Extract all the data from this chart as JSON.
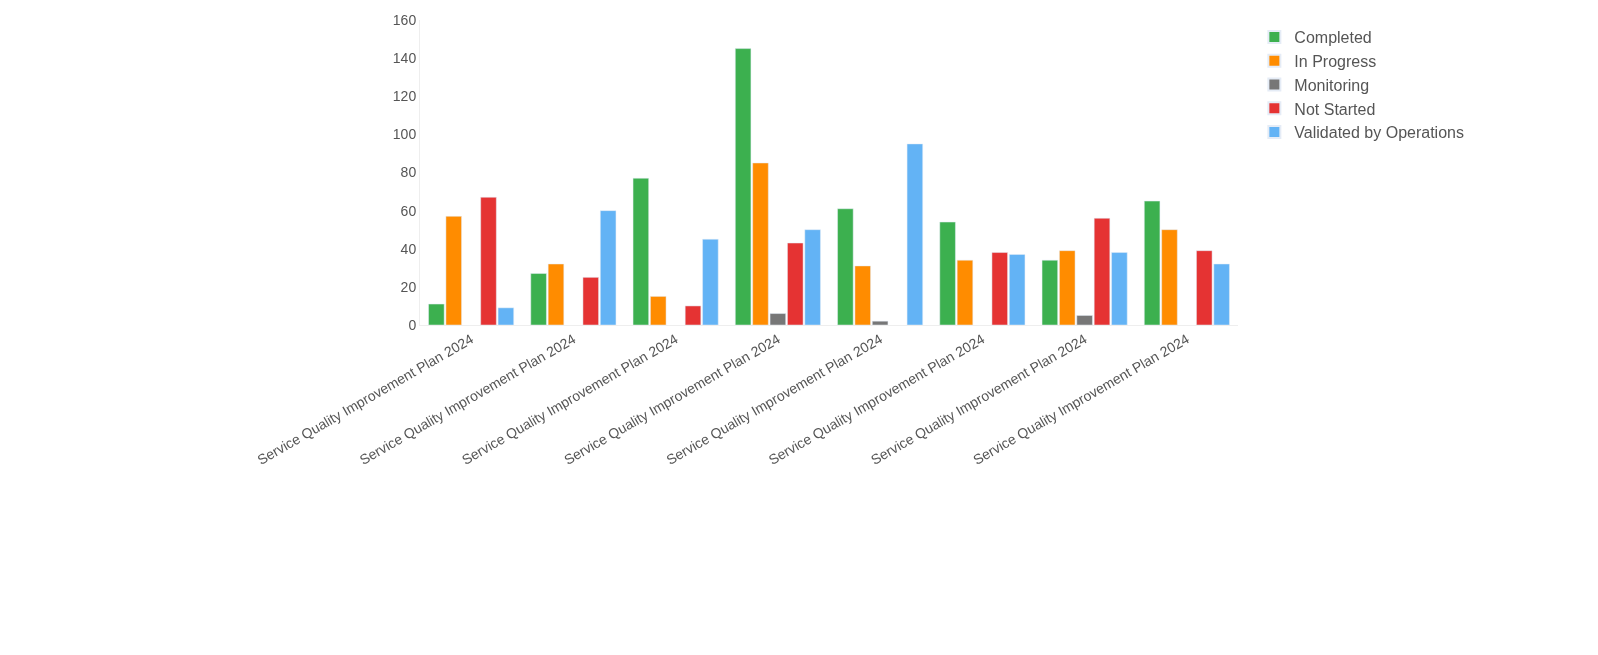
{
  "chart_data": {
    "type": "bar",
    "categories": [
      "Service Quality Improvement Plan 2024",
      "Service Quality Improvement Plan 2024",
      "Service Quality Improvement Plan 2024",
      "Service Quality Improvement Plan 2024",
      "Service Quality Improvement Plan 2024",
      "Service Quality Improvement Plan 2024",
      "Service Quality Improvement Plan 2024",
      "Service Quality Improvement Plan 2024"
    ],
    "series": [
      {
        "name": "Completed",
        "color": "#3cb04f",
        "values": [
          11,
          27,
          77,
          145,
          61,
          54,
          34,
          65
        ]
      },
      {
        "name": "In Progress",
        "color": "#ff8c00",
        "values": [
          57,
          32,
          15,
          85,
          31,
          34,
          39,
          50
        ]
      },
      {
        "name": "Monitoring",
        "color": "#777777",
        "values": [
          null,
          null,
          null,
          6,
          2,
          null,
          5,
          null
        ]
      },
      {
        "name": "Not Started",
        "color": "#e53333",
        "values": [
          67,
          25,
          10,
          43,
          null,
          38,
          56,
          39
        ]
      },
      {
        "name": "Validated by Operations",
        "color": "#63b3f5",
        "values": [
          9,
          60,
          45,
          50,
          95,
          37,
          38,
          32
        ]
      }
    ],
    "ylim": [
      0,
      160
    ],
    "yticks": [
      0,
      20,
      40,
      60,
      80,
      100,
      120,
      140,
      160
    ],
    "grid": false,
    "legend": "top right"
  }
}
